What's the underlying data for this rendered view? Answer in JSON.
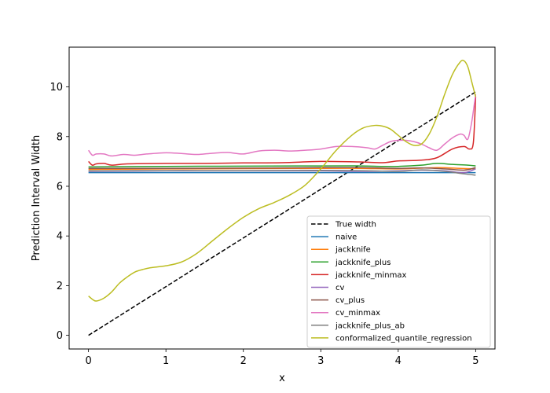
{
  "chart_data": {
    "type": "line",
    "xlabel": "x",
    "ylabel": "Prediction Interval Width",
    "xlim": [
      -0.25,
      5.25
    ],
    "ylim": [
      -0.55,
      11.6
    ],
    "xticks": [
      0,
      1,
      2,
      3,
      4,
      5
    ],
    "yticks": [
      0,
      2,
      4,
      6,
      8,
      10
    ],
    "legend_position": "lower-right",
    "grid": false,
    "series": [
      {
        "name": "True width",
        "color": "#000000",
        "dash": true,
        "x": [
          0,
          5
        ],
        "y": [
          0,
          9.8
        ]
      },
      {
        "name": "naive",
        "color": "#1f77b4",
        "x": [
          0,
          5
        ],
        "y": [
          6.55,
          6.55
        ]
      },
      {
        "name": "jackknife",
        "color": "#ff7f0e",
        "x": [
          0,
          1,
          2,
          3,
          3.5,
          4,
          4.5,
          4.8,
          5
        ],
        "y": [
          6.68,
          6.7,
          6.71,
          6.72,
          6.72,
          6.7,
          6.75,
          6.72,
          6.7
        ]
      },
      {
        "name": "jackknife_plus",
        "color": "#2ca02c",
        "x": [
          0,
          1,
          2,
          3,
          3.5,
          3.8,
          4,
          4.3,
          4.5,
          4.7,
          4.9,
          5
        ],
        "y": [
          6.78,
          6.8,
          6.81,
          6.82,
          6.82,
          6.8,
          6.8,
          6.85,
          6.92,
          6.88,
          6.85,
          6.82
        ]
      },
      {
        "name": "jackknife_minmax",
        "color": "#d62728",
        "x": [
          0,
          0.05,
          0.1,
          0.2,
          0.3,
          0.5,
          1,
          1.5,
          2,
          2.5,
          3,
          3.5,
          3.8,
          4,
          4.3,
          4.5,
          4.7,
          4.85,
          4.92,
          4.97,
          5
        ],
        "y": [
          7.0,
          6.85,
          6.9,
          6.92,
          6.85,
          6.9,
          6.92,
          6.92,
          6.94,
          6.95,
          7.0,
          6.98,
          6.95,
          7.02,
          7.05,
          7.15,
          7.5,
          7.6,
          7.5,
          7.75,
          9.6
        ]
      },
      {
        "name": "cv",
        "color": "#9467bd",
        "x": [
          0,
          1,
          2,
          3,
          3.5,
          4,
          4.3,
          4.6,
          4.85,
          5
        ],
        "y": [
          6.6,
          6.62,
          6.62,
          6.62,
          6.6,
          6.62,
          6.65,
          6.62,
          6.55,
          6.7
        ]
      },
      {
        "name": "cv_plus",
        "color": "#8c564b",
        "x": [
          0,
          1,
          2,
          3,
          3.5,
          4,
          4.3,
          4.6,
          4.85,
          5
        ],
        "y": [
          6.72,
          6.72,
          6.73,
          6.75,
          6.75,
          6.72,
          6.74,
          6.7,
          6.65,
          6.75
        ]
      },
      {
        "name": "cv_minmax",
        "color": "#e377c2",
        "x": [
          0,
          0.05,
          0.1,
          0.2,
          0.3,
          0.45,
          0.6,
          0.75,
          1,
          1.2,
          1.4,
          1.6,
          1.8,
          2,
          2.2,
          2.4,
          2.6,
          2.8,
          3,
          3.2,
          3.4,
          3.6,
          3.7,
          3.8,
          3.9,
          4,
          4.1,
          4.2,
          4.3,
          4.4,
          4.5,
          4.6,
          4.7,
          4.8,
          4.85,
          4.9,
          4.95,
          5
        ],
        "y": [
          7.45,
          7.25,
          7.3,
          7.3,
          7.22,
          7.28,
          7.25,
          7.3,
          7.35,
          7.32,
          7.28,
          7.33,
          7.36,
          7.3,
          7.42,
          7.45,
          7.42,
          7.45,
          7.5,
          7.6,
          7.6,
          7.55,
          7.5,
          7.65,
          7.8,
          7.85,
          7.85,
          7.8,
          7.7,
          7.55,
          7.45,
          7.7,
          7.95,
          8.1,
          8.05,
          7.9,
          8.6,
          9.7
        ]
      },
      {
        "name": "jackknife_plus_ab",
        "color": "#7f7f7f",
        "x": [
          0,
          1,
          2,
          3,
          3.5,
          4,
          4.3,
          4.6,
          4.85,
          5
        ],
        "y": [
          6.62,
          6.63,
          6.63,
          6.64,
          6.63,
          6.6,
          6.66,
          6.6,
          6.5,
          6.45
        ]
      },
      {
        "name": "conformalized_quantile_regression",
        "color": "#bcbd22",
        "x": [
          0,
          0.05,
          0.1,
          0.2,
          0.3,
          0.4,
          0.5,
          0.6,
          0.7,
          0.8,
          1,
          1.2,
          1.4,
          1.6,
          1.8,
          2,
          2.2,
          2.4,
          2.6,
          2.8,
          3,
          3.2,
          3.4,
          3.55,
          3.7,
          3.8,
          3.9,
          4,
          4.1,
          4.2,
          4.3,
          4.4,
          4.5,
          4.6,
          4.7,
          4.8,
          4.85,
          4.9,
          4.95,
          5
        ],
        "y": [
          1.58,
          1.45,
          1.38,
          1.5,
          1.75,
          2.1,
          2.35,
          2.55,
          2.65,
          2.72,
          2.8,
          2.95,
          3.3,
          3.8,
          4.3,
          4.75,
          5.1,
          5.35,
          5.65,
          6.05,
          6.7,
          7.45,
          8.05,
          8.35,
          8.45,
          8.42,
          8.3,
          8.05,
          7.8,
          7.65,
          7.7,
          8.1,
          8.8,
          9.7,
          10.5,
          11.0,
          11.05,
          10.8,
          10.2,
          9.6
        ]
      }
    ]
  }
}
